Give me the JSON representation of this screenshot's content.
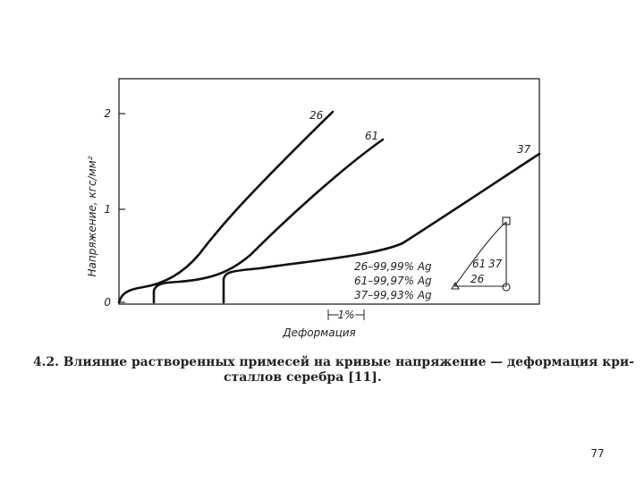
{
  "figure": {
    "y_axis_label": "Напряжение, кгс/мм²",
    "y_ticks": [
      "2",
      "1",
      "0"
    ],
    "curve_labels": [
      "26",
      "61",
      "37"
    ],
    "legend": [
      "26–99,99% Ag",
      "61–99,97% Ag",
      "37–99,93% Ag"
    ],
    "inset_labels": [
      "61",
      "37",
      "26"
    ],
    "scale_label": "1%",
    "x_axis_label": "Деформация"
  },
  "caption": {
    "line1": "4.2. Влияние растворенных примесей на кривые напряжение — деформация кри-",
    "line2": "сталлов серебра [11]."
  },
  "page_number": "77"
}
